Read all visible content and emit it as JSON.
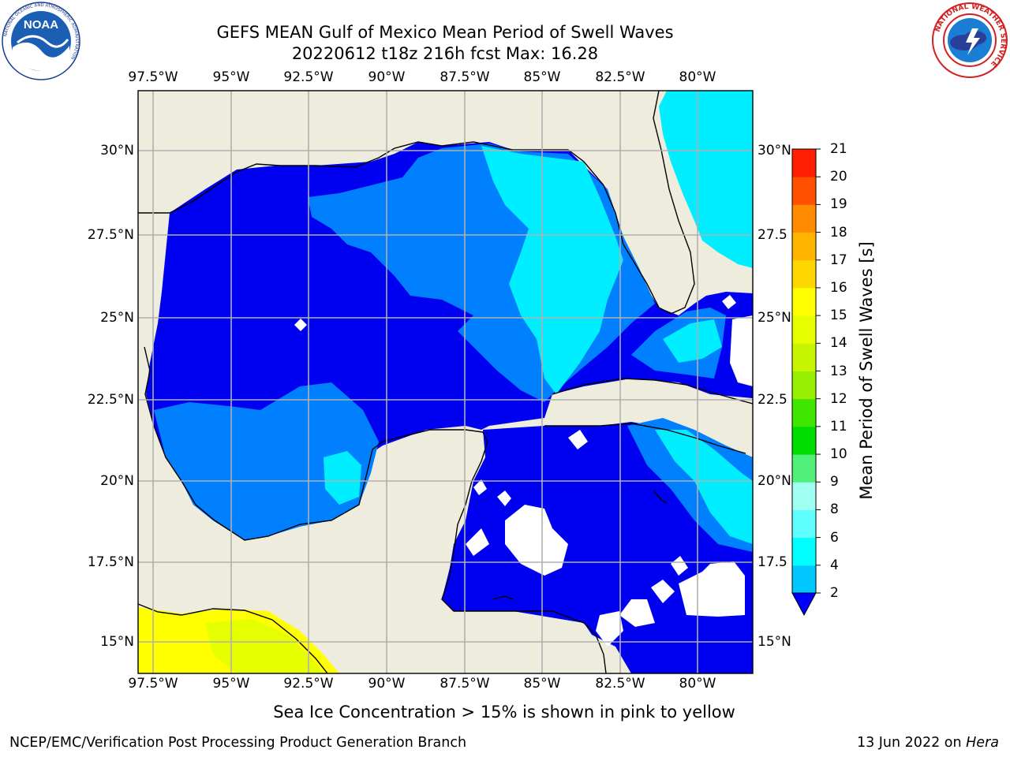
{
  "title": {
    "line1": "GEFS MEAN Gulf of Mexico Mean Period of Swell Waves",
    "line2": "20220612 t18z 216h fcst   Max: 16.28"
  },
  "logos": {
    "noaa": {
      "text": "NOAA",
      "ring_text": "NATIONAL OCEANIC AND ATMOSPHERIC ADMINISTRATION",
      "icon": "noaa-logo-icon"
    },
    "nws": {
      "ring_text": "NATIONAL WEATHER SERVICE",
      "icon": "nws-logo-icon"
    }
  },
  "map": {
    "lon_labels": [
      "97.5°W",
      "95°W",
      "92.5°W",
      "90°W",
      "87.5°W",
      "85°W",
      "82.5°W",
      "80°W"
    ],
    "lat_labels_left": [
      "30°N",
      "27.5°N",
      "25°N",
      "22.5°N",
      "20°N",
      "17.5°N",
      "15°N"
    ],
    "lat_labels_right": [
      "30°N",
      "27.5",
      "25°N",
      "22.5",
      "20°N",
      "17.5",
      "15°N"
    ],
    "grid": true,
    "colors": {
      "land": "#eeeddd",
      "no_data": "#ffffff",
      "band_2_4": "#0000f0",
      "band_4_6": "#0080ff",
      "band_6_8": "#00eeff",
      "band_8_9": "#50ffff",
      "band_13_15": "#e6ff00",
      "band_15_16": "#ffff00",
      "coast": "#000000",
      "gridline": "#b0b0b0"
    }
  },
  "colorbar": {
    "label": "Mean Period of Swell Waves [s]",
    "ticks": [
      "2",
      "4",
      "6",
      "8",
      "9",
      "10",
      "11",
      "12",
      "13",
      "14",
      "15",
      "16",
      "17",
      "18",
      "19",
      "20",
      "21"
    ],
    "colors": [
      "#0a50ff",
      "#00c8ff",
      "#00ffff",
      "#60ffff",
      "#a0fff0",
      "#50f07a",
      "#00dc00",
      "#40e600",
      "#96ef00",
      "#c8f500",
      "#e6ff00",
      "#ffff00",
      "#ffd700",
      "#ffb400",
      "#ff8c00",
      "#ff5000",
      "#ff1e00",
      "#ff0000"
    ],
    "under_color": "#0000ff"
  },
  "caption": "Sea Ice Concentration > 15% is shown in pink to yellow",
  "footer": {
    "left": "NCEP/EMC/Verification Post Processing Product Generation Branch",
    "right_date": "13 Jun 2022 on ",
    "right_host": "Hera"
  }
}
